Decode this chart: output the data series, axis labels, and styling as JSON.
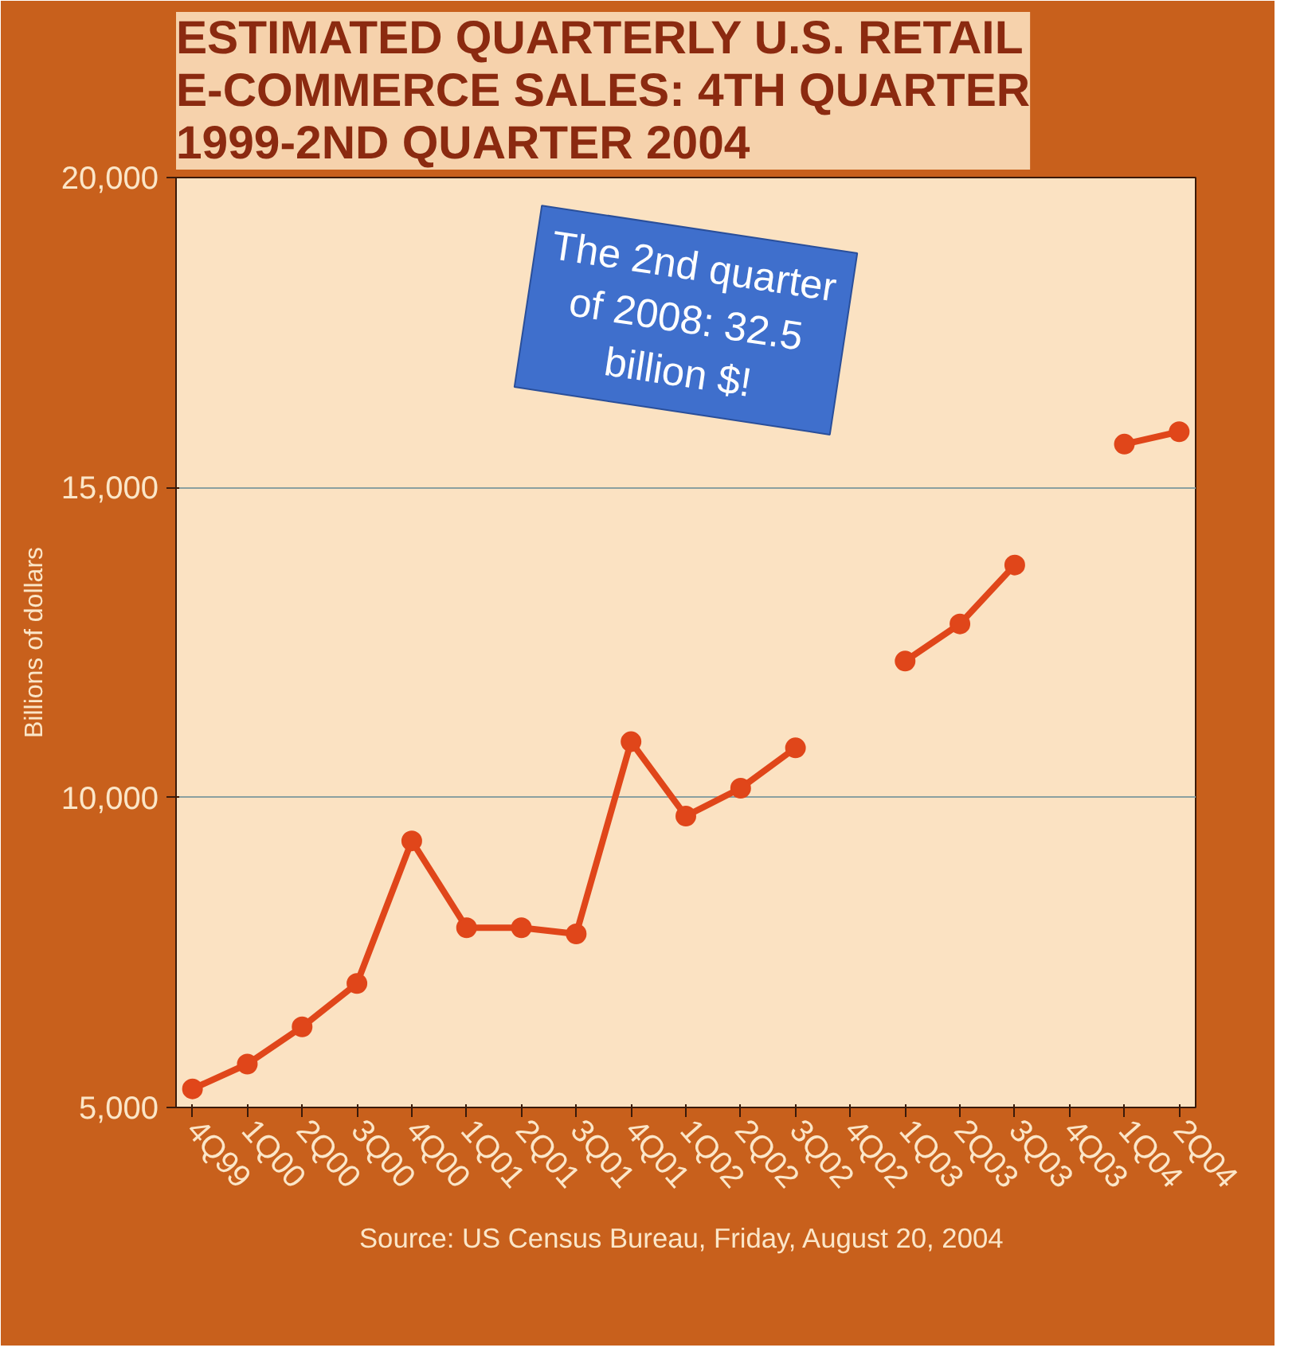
{
  "chart_data": {
    "type": "line",
    "title": "ESTIMATED QUARTERLY U.S. RETAIL E-COMMERCE SALES: 4TH QUARTER 1999-2ND QUARTER 2004",
    "ylabel": "Billions of dollars",
    "categories": [
      "4Q99",
      "1Q00",
      "2Q00",
      "3Q00",
      "4Q00",
      "1Q01",
      "2Q01",
      "3Q01",
      "4Q01",
      "1Q02",
      "2Q02",
      "3Q02",
      "4Q02",
      "1Q03",
      "2Q03",
      "3Q03",
      "4Q03",
      "1Q04",
      "2Q04"
    ],
    "series": [
      {
        "color": "#e0461a",
        "values": [
          5300,
          5700,
          6300,
          7000,
          9300,
          7900,
          7900,
          7800,
          10900,
          9700,
          10150,
          10800,
          null,
          12200,
          12800,
          13750,
          null,
          15700,
          15900
        ]
      }
    ],
    "ylim": [
      5000,
      20000
    ],
    "yticks": [
      {
        "value": 5000,
        "label": "5,000"
      },
      {
        "value": 10000,
        "label": "10,000"
      },
      {
        "value": 15000,
        "label": "15,000"
      },
      {
        "value": 20000,
        "label": "20,000"
      }
    ],
    "grid": "y",
    "marker": "circle",
    "line_style": "solid",
    "annotations": [
      "The 2nd quarter of 2008: 32.5 billion $!",
      "Source: US Census Bureau,  Friday, August 20, 2004"
    ]
  }
}
